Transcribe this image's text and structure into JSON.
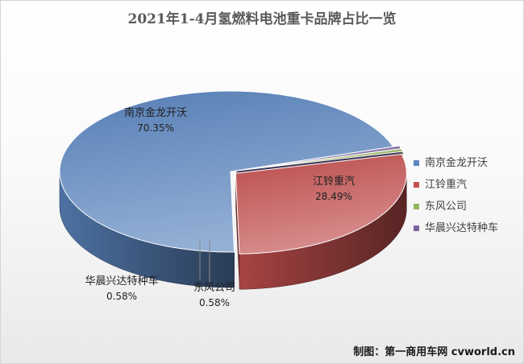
{
  "chart_data": {
    "type": "pie",
    "title": "2021年1-4月氢燃料电池重卡品牌占比一览",
    "slices": [
      {
        "label": "南京金龙开沃",
        "value": 70.35,
        "percent_label": "70.35%",
        "color": "#5b85be"
      },
      {
        "label": "江铃重汽",
        "value": 28.49,
        "percent_label": "28.49%",
        "color": "#c3504f"
      },
      {
        "label": "东风公司",
        "value": 0.58,
        "percent_label": "0.58%",
        "color": "#95b55b"
      },
      {
        "label": "华晨兴达特种车",
        "value": 0.58,
        "percent_label": "0.58%",
        "color": "#7b64a0"
      }
    ],
    "legend_position": "right"
  },
  "footer": {
    "credit": "制图：第一商用车网 cvworld.cn"
  }
}
